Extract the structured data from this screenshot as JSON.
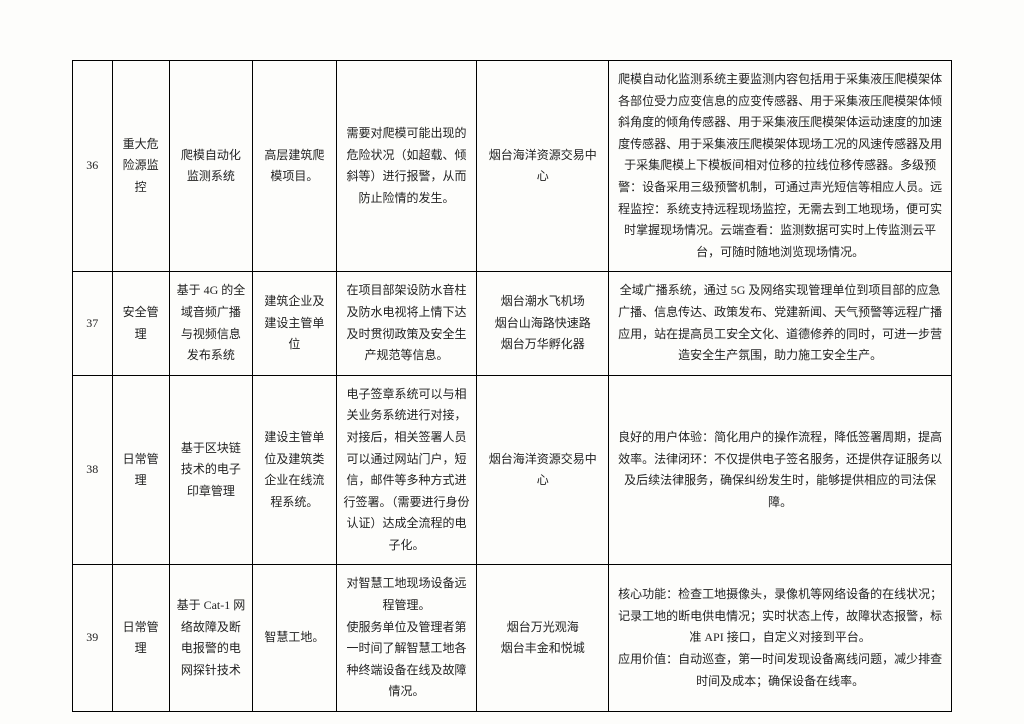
{
  "colors": {
    "text": "#222222",
    "border": "#000000",
    "background": "#fdfdfb"
  },
  "typography": {
    "font_family": "SimSun",
    "font_size_pt": 12,
    "line_height": 1.8
  },
  "columns": {
    "widths_pct": [
      4.5,
      6.5,
      9.5,
      9.5,
      16,
      15,
      39
    ],
    "align": [
      "center",
      "center",
      "center",
      "center",
      "center",
      "center",
      "center"
    ]
  },
  "rows": [
    {
      "num": "36",
      "category": "重大危险源监控",
      "name": "爬模自动化监测系统",
      "scope": "高层建筑爬模项目。",
      "requirement": "需要对爬模可能出现的危险状况（如超载、倾斜等）进行报警，从而防止险情的发生。",
      "project": "烟台海洋资源交易中心",
      "function": "爬模自动化监测系统主要监测内容包括用于采集液压爬模架体各部位受力应变信息的应变传感器、用于采集液压爬模架体倾斜角度的倾角传感器、用于采集液压爬模架体运动速度的加速度传感器、用于采集液压爬模架体现场工况的风速传感器及用于采集爬模上下模板间相对位移的拉线位移传感器。多级预警：设备采用三级预警机制，可通过声光短信等相应人员。远程监控：系统支持远程现场监控，无需去到工地现场，便可实时掌握现场情况。云端查看：监测数据可实时上传监测云平台，可随时随地浏览现场情况。"
    },
    {
      "num": "37",
      "category": "安全管理",
      "name": "基于 4G 的全域音频广播与视频信息发布系统",
      "scope": "建筑企业及建设主管单位",
      "requirement": "在项目部架设防水音柱及防水电视将上情下达及时贯彻政策及安全生产规范等信息。",
      "project": "烟台潮水飞机场\n烟台山海路快速路\n烟台万华孵化器",
      "function": "全域广播系统，通过 5G 及网络实现管理单位到项目部的应急广播、信息传达、政策发布、党建新闻、天气预警等远程广播应用，站在提高员工安全文化、道德修养的同时，可进一步营造安全生产氛围，助力施工安全生产。"
    },
    {
      "num": "38",
      "category": "日常管理",
      "name": "基于区块链技术的电子印章管理",
      "scope": "建设主管单位及建筑类企业在线流程系统。",
      "requirement": "电子签章系统可以与相关业务系统进行对接，对接后，相关签署人员可以通过网站门户，短信，邮件等多种方式进行签署。（需要进行身份认证）达成全流程的电子化。",
      "project": "烟台海洋资源交易中心",
      "function": "良好的用户体验：简化用户的操作流程，降低签署周期，提高效率。法律闭环：不仅提供电子签名服务，还提供存证服务以及后续法律服务，确保纠纷发生时，能够提供相应的司法保障。"
    },
    {
      "num": "39",
      "category": "日常管理",
      "name": "基于 Cat-1 网络故障及断电报警的电网探针技术",
      "scope": "智慧工地。",
      "requirement": "对智慧工地现场设备远程管理。\n使服务单位及管理者第一时间了解智慧工地各种终端设备在线及故障情况。",
      "project": "烟台万光观海\n烟台丰金和悦城",
      "function": "核心功能：检查工地摄像头，录像机等网络设备的在线状况；记录工地的断电供电情况；实时状态上传，故障状态报警，标准 API 接口，自定义对接到平台。\n应用价值：自动巡查，第一时间发现设备离线问题，减少排查时间及成本；确保设备在线率。"
    }
  ]
}
